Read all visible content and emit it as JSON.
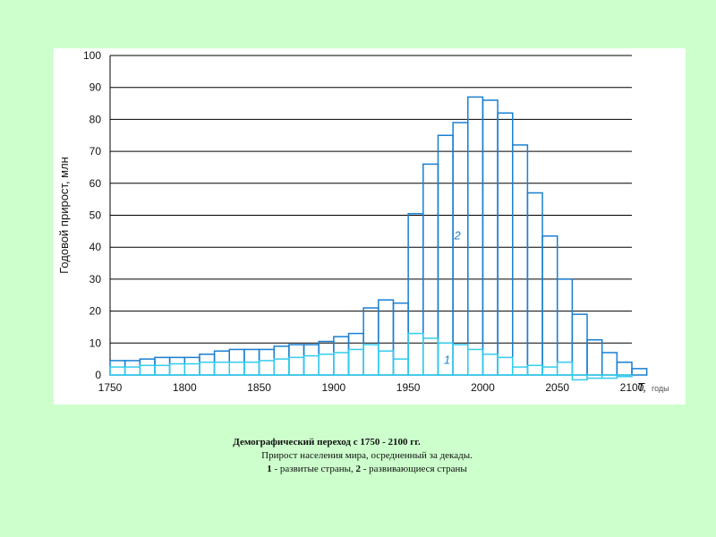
{
  "colors": {
    "page_background": "#ccffcc",
    "series_developed": "#33ccee",
    "series_developing": "#1a7fd1",
    "grid": "#000000"
  },
  "chart_data": {
    "type": "bar",
    "ylabel": "Годовой прирост, млн",
    "xlabel_symbol": "T,",
    "xlabel_unit": "годы",
    "xlim": [
      1750,
      2100
    ],
    "ylim": [
      0,
      100
    ],
    "x_ticks": [
      "1750",
      "1800",
      "1850",
      "1900",
      "1950",
      "2000",
      "2050",
      "2100"
    ],
    "y_ticks": [
      "0",
      "10",
      "20",
      "30",
      "40",
      "50",
      "60",
      "70",
      "80",
      "90",
      "100"
    ],
    "grid": "horizontal",
    "bin_width": 10,
    "series": [
      {
        "name": "1",
        "label": "1",
        "color": "#33ccee",
        "x": [
          1750,
          1760,
          1770,
          1780,
          1790,
          1800,
          1810,
          1820,
          1830,
          1840,
          1850,
          1860,
          1870,
          1880,
          1890,
          1900,
          1910,
          1920,
          1930,
          1940,
          1950,
          1960,
          1970,
          1980,
          1990,
          2000,
          2010,
          2020,
          2030,
          2040,
          2050,
          2060,
          2070,
          2080,
          2090,
          2100
        ],
        "values": [
          2.5,
          2.5,
          3,
          3,
          3.5,
          3.5,
          4,
          4,
          4,
          4,
          4.5,
          5,
          5.5,
          6,
          6.5,
          7,
          8,
          9.5,
          7.5,
          5,
          13,
          11.5,
          10,
          9.5,
          8,
          6.5,
          5.5,
          2.5,
          3,
          2.5,
          4,
          -1.5,
          -1,
          -1,
          -0.5,
          0
        ]
      },
      {
        "name": "2",
        "label": "2",
        "color": "#1a7fd1",
        "x": [
          1750,
          1760,
          1770,
          1780,
          1790,
          1800,
          1810,
          1820,
          1830,
          1840,
          1850,
          1860,
          1870,
          1880,
          1890,
          1900,
          1910,
          1920,
          1930,
          1940,
          1950,
          1960,
          1970,
          1980,
          1990,
          2000,
          2010,
          2020,
          2030,
          2040,
          2050,
          2060,
          2070,
          2080,
          2090,
          2100
        ],
        "values": [
          4.5,
          4.5,
          5,
          5.5,
          5.5,
          5.5,
          6.5,
          7.5,
          8,
          8,
          8,
          9,
          9.5,
          9.5,
          10.5,
          12,
          13,
          21,
          23.5,
          22.5,
          50.5,
          66,
          75,
          79,
          87,
          86,
          82,
          72,
          57,
          43.5,
          30,
          19,
          11,
          7,
          4,
          2
        ]
      }
    ]
  },
  "caption": {
    "title": "Демографический переход с 1750 - 2100 гг.",
    "line2": "Прирост населения мира, осредненный за декады.",
    "label1_num": "1",
    "label1_text": " - развитые страны, ",
    "label2_num": "2",
    "label2_text": " - развивающиеся страны"
  }
}
